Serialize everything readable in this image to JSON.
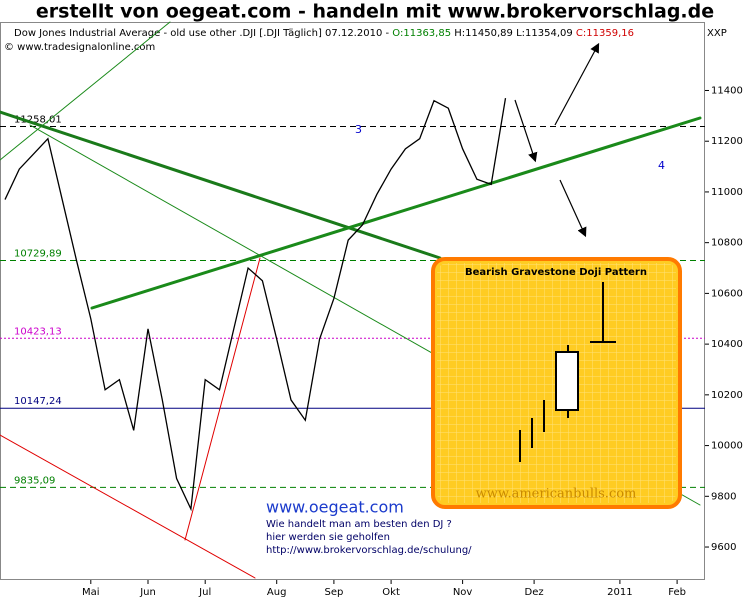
{
  "chart_data": {
    "type": "line",
    "title": "erstellt von oegeat.com  - handeln mit  www.brokervorschlag.de",
    "info": {
      "name": "Dow Jones Industrial Average - old use other .DJI [.DJI  Täglich] 07.12.2010 -",
      "open": "O:11363,85",
      "high": "H:11450,89",
      "low": "L:11354,09",
      "close": "C:11359,16"
    },
    "source": "© www.tradesignalonline.com",
    "symbol": "XXP",
    "categories": [
      null,
      null,
      null,
      null,
      null,
      null,
      "Mai",
      null,
      null,
      null,
      "Jun",
      null,
      null,
      null,
      "Jul",
      null,
      null,
      null,
      null,
      "Aug",
      null,
      null,
      null,
      "Sep",
      null,
      null,
      null,
      "Okt",
      null,
      null,
      null,
      null,
      "Nov",
      null,
      null,
      null,
      null,
      "Dez",
      null,
      null,
      null,
      null,
      null,
      "2011",
      null,
      null,
      null,
      "Feb",
      null
    ],
    "values": [
      10970,
      11090,
      11150,
      11210,
      10970,
      10730,
      10500,
      10220,
      10260,
      10060,
      10460,
      10180,
      9870,
      9750,
      10260,
      10220,
      10460,
      10700,
      10650,
      10420,
      10180,
      10100,
      10420,
      10580,
      10810,
      10870,
      10990,
      11090,
      11170,
      11210,
      11360,
      11330,
      11170,
      11050,
      11030,
      11370,
      null,
      null,
      null,
      null,
      null,
      null,
      null,
      null,
      null,
      null,
      null,
      null,
      null
    ],
    "color": "#000000",
    "ylim": [
      9470,
      11670
    ],
    "yticks": [
      9600,
      9800,
      10000,
      10200,
      10400,
      10600,
      10800,
      11000,
      11200,
      11400
    ],
    "grid": false,
    "levels": [
      {
        "value": 11258.01,
        "label": "11258,01",
        "color": "#000000",
        "dash": "6,4"
      },
      {
        "value": 10729.89,
        "label": "10729,89",
        "color": "#008000",
        "dash": "6,4"
      },
      {
        "value": 10423.13,
        "label": "10423,13",
        "color": "#cc00cc",
        "dash": "2,2"
      },
      {
        "value": 10147.24,
        "label": "10147,24",
        "color": "#000080",
        "dash": "none"
      },
      {
        "value": 9835.09,
        "label": "9835,09",
        "color": "#008000",
        "dash": "6,4"
      }
    ],
    "annotations": [
      "3",
      "4"
    ],
    "pattern": {
      "title": "Bearish Gravestone Doji Pattern",
      "watermark": "www.americanbulls.com"
    },
    "promo": {
      "title": "www.oegeat.com",
      "lines": [
        "Wie handelt man am besten  den DJ ?",
        "hier werden sie geholfen",
        "http://www.brokervorschlag.de/schulung/"
      ]
    }
  }
}
